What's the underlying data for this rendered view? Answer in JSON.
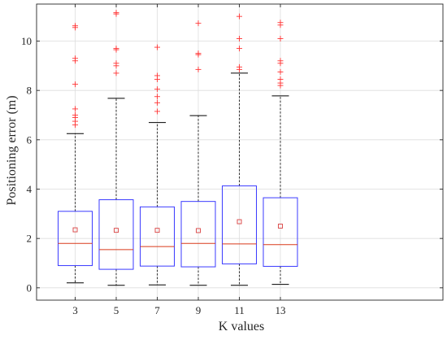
{
  "chart_data": {
    "type": "box",
    "xlabel": "K values",
    "ylabel": "Positioning error (m)",
    "categories": [
      "3",
      "5",
      "7",
      "9",
      "11",
      "13"
    ],
    "ylim": [
      -0.5,
      11.5
    ],
    "yticks": [
      0,
      2,
      4,
      6,
      8,
      10
    ],
    "grid": true,
    "colors": {
      "box": "#3b3bff",
      "median": "#d93a1b",
      "whisker": "#000000",
      "outlier": "#ff3333",
      "mean_marker": "#d94040",
      "grid": "#dddddd"
    },
    "boxes": [
      {
        "category": "3",
        "whisker_low": 0.2,
        "q1": 0.9,
        "median": 1.8,
        "q3": 3.1,
        "whisker_high": 6.25,
        "mean": 2.35,
        "outliers": [
          6.6,
          6.75,
          6.9,
          7.0,
          7.25,
          8.25,
          9.2,
          9.3,
          10.55,
          10.62
        ]
      },
      {
        "category": "5",
        "whisker_low": 0.1,
        "q1": 0.75,
        "median": 1.55,
        "q3": 3.57,
        "whisker_high": 7.68,
        "mean": 2.33,
        "outliers": [
          8.7,
          9.0,
          9.1,
          9.65,
          9.7,
          11.1,
          11.15
        ]
      },
      {
        "category": "7",
        "whisker_low": 0.12,
        "q1": 0.88,
        "median": 1.67,
        "q3": 3.28,
        "whisker_high": 6.7,
        "mean": 2.33,
        "outliers": [
          7.15,
          7.5,
          7.75,
          8.05,
          8.45,
          8.6,
          9.75
        ]
      },
      {
        "category": "9",
        "whisker_low": 0.1,
        "q1": 0.85,
        "median": 1.8,
        "q3": 3.5,
        "whisker_high": 6.98,
        "mean": 2.32,
        "outliers": [
          8.85,
          9.45,
          9.5,
          10.72
        ]
      },
      {
        "category": "11",
        "whisker_low": 0.1,
        "q1": 0.97,
        "median": 1.78,
        "q3": 4.13,
        "whisker_high": 8.7,
        "mean": 2.68,
        "outliers": [
          8.85,
          8.95,
          9.7,
          10.1,
          11.0
        ]
      },
      {
        "category": "13",
        "whisker_low": 0.14,
        "q1": 0.87,
        "median": 1.75,
        "q3": 3.65,
        "whisker_high": 7.78,
        "mean": 2.5,
        "outliers": [
          8.2,
          8.3,
          8.45,
          8.75,
          9.1,
          9.2,
          10.1,
          10.65,
          10.75
        ]
      }
    ]
  }
}
